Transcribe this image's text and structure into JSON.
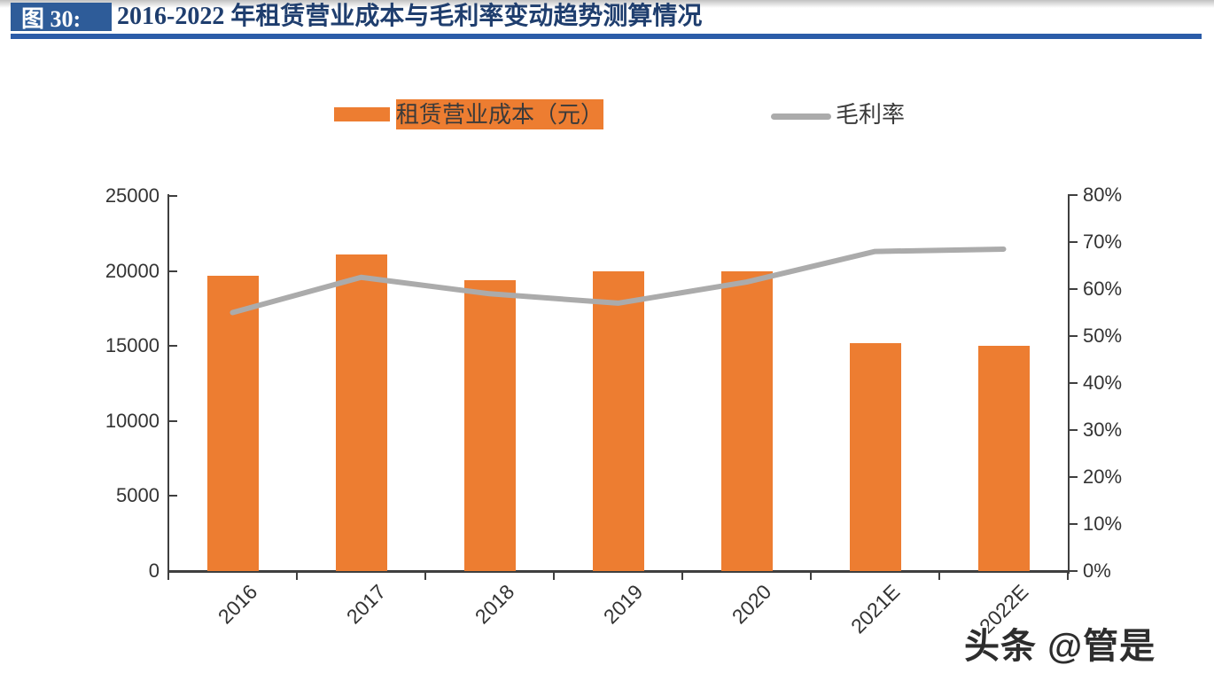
{
  "header": {
    "figure_label": "图 30:",
    "title": "2016-2022 年租赁营业成本与毛利率变动趋势测算情况"
  },
  "legend": [
    {
      "label": "租赁营业成本（元）",
      "type": "bar",
      "color": "#ED7D31"
    },
    {
      "label": "毛利率",
      "type": "line",
      "color": "#ABABAB"
    }
  ],
  "watermark": "头条 @管是",
  "colors": {
    "bar": "#ED7D31",
    "line": "#ABABAB",
    "axis": "#3F3F3F",
    "header_box_bg": "#2E5C99",
    "header_rule": "#2B5CA8",
    "title_text": "#1F3E6E"
  },
  "chart_data": {
    "type": "bar",
    "subtype": "bar+line dual axis",
    "categories": [
      "2016",
      "2017",
      "2018",
      "2019",
      "2020",
      "2021E",
      "2022E"
    ],
    "series": [
      {
        "name": "租赁营业成本（元）",
        "type": "bar",
        "axis": "left",
        "values": [
          19700,
          21100,
          19400,
          19950,
          19950,
          15200,
          15000
        ]
      },
      {
        "name": "毛利率",
        "type": "line",
        "axis": "right",
        "values": [
          55,
          62.5,
          59,
          57,
          61.5,
          68,
          68.5
        ]
      }
    ],
    "title": "2016-2022 年租赁营业成本与毛利率变动趋势测算情况",
    "xlabel": "",
    "ylabel_left": "",
    "ylabel_right": "",
    "left_axis": {
      "min": 0,
      "max": 25000,
      "step": 5000,
      "tick_labels": [
        "0",
        "5000",
        "10000",
        "15000",
        "20000",
        "25000"
      ]
    },
    "right_axis": {
      "min": 0,
      "max": 80,
      "step": 10,
      "tick_labels": [
        "0%",
        "10%",
        "20%",
        "30%",
        "40%",
        "50%",
        "60%",
        "70%",
        "80%"
      ]
    },
    "grid": false,
    "legend_position": "top"
  }
}
